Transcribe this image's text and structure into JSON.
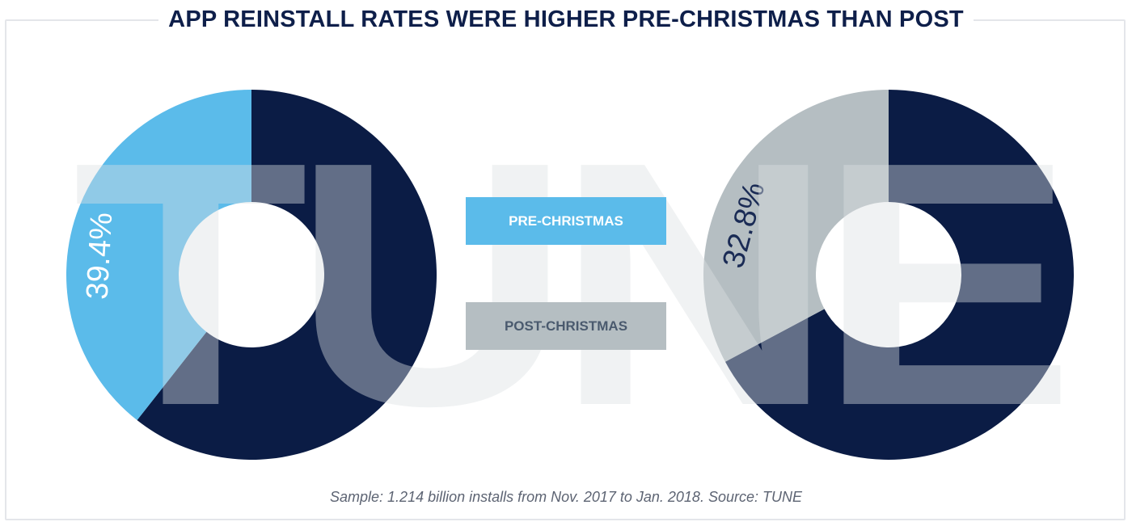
{
  "title": "APP REINSTALL RATES WERE HIGHER PRE-CHRISTMAS THAN POST",
  "footnote": "Sample: 1.214 billion installs from Nov. 2017 to Jan. 2018. Source: TUNE",
  "watermark": "TUNE",
  "legend": {
    "pre": "PRE-CHRISTMAS",
    "post": "POST-CHRISTMAS"
  },
  "colors": {
    "pre": "#5bbbea",
    "post": "#b5bec2",
    "remainder": "#0b1c45",
    "title": "#0e1f4a"
  },
  "chart_data": [
    {
      "type": "pie",
      "series": "PRE-CHRISTMAS",
      "slices": [
        {
          "label": "39.4%",
          "value": 39.4,
          "highlight": true
        },
        {
          "label": "",
          "value": 60.6,
          "highlight": false
        }
      ],
      "data_label": "39.4%"
    },
    {
      "type": "pie",
      "series": "POST-CHRISTMAS",
      "slices": [
        {
          "label": "32.8%",
          "value": 32.8,
          "highlight": true
        },
        {
          "label": "",
          "value": 67.2,
          "highlight": false
        }
      ],
      "data_label": "32.8%"
    }
  ]
}
